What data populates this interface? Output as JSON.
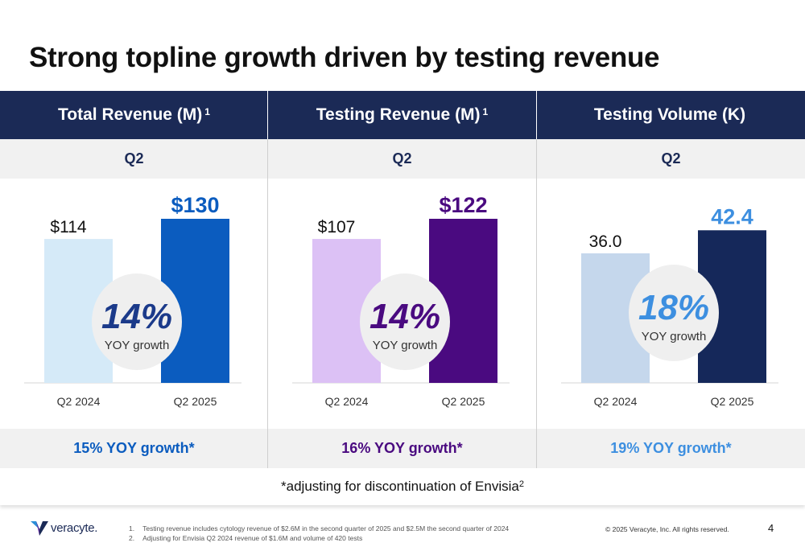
{
  "title": "Strong topline growth driven by testing revenue",
  "panels": [
    {
      "header": "Total Revenue (M)",
      "header_sup": "1",
      "period": "Q2",
      "yoy_adjusted": "15% YOY growth*",
      "growth": {
        "pct": "14%",
        "label": "YOY growth"
      }
    },
    {
      "header": "Testing Revenue (M)",
      "header_sup": "1",
      "period": "Q2",
      "yoy_adjusted": "16% YOY growth*",
      "growth": {
        "pct": "14%",
        "label": "YOY growth"
      }
    },
    {
      "header": "Testing Volume (K)",
      "header_sup": "",
      "period": "Q2",
      "yoy_adjusted": "19% YOY growth*",
      "growth": {
        "pct": "18%",
        "label": "YOY growth"
      }
    }
  ],
  "chart_data": [
    {
      "type": "bar",
      "title": "Total Revenue (M)",
      "categories": [
        "Q2 2024",
        "Q2 2025"
      ],
      "values": [
        114,
        130
      ],
      "labels": [
        "$114",
        "$130"
      ],
      "colors": [
        "#d5eaf8",
        "#0b5cbf"
      ],
      "label_colors": [
        "#111111",
        "#0b5cbf"
      ],
      "pct_color": "#1b3a8a"
    },
    {
      "type": "bar",
      "title": "Testing Revenue (M)",
      "categories": [
        "Q2 2024",
        "Q2 2025"
      ],
      "values": [
        107,
        122
      ],
      "labels": [
        "$107",
        "$122"
      ],
      "colors": [
        "#dcc1f5",
        "#4a0a80"
      ],
      "label_colors": [
        "#111111",
        "#4a0a80"
      ],
      "pct_color": "#4a0a80"
    },
    {
      "type": "bar",
      "title": "Testing Volume (K)",
      "categories": [
        "Q2 2024",
        "Q2 2025"
      ],
      "values": [
        36.0,
        42.4
      ],
      "labels": [
        "36.0",
        "42.4"
      ],
      "colors": [
        "#c5d7ec",
        "#15285a"
      ],
      "label_colors": [
        "#111111",
        "#3d8fe0"
      ],
      "pct_color": "#3d8fe0"
    }
  ],
  "yoy_colors": [
    "#0b5cbf",
    "#4a0a80",
    "#3d8fe0"
  ],
  "footnote": "*adjusting for discontinuation of Envisia",
  "footnote_sup": "2",
  "notes": [
    {
      "num": "1.",
      "text": "Testing revenue includes cytology revenue of $2.6M in the second quarter of 2025 and $2.5M the second quarter of 2024"
    },
    {
      "num": "2.",
      "text": "Adjusting for Envisia Q2 2024 revenue of $1.6M and volume of 420 tests"
    }
  ],
  "logo_text": "veracyte.",
  "copyright": "© 2025 Veracyte, Inc. All rights reserved.",
  "page_number": "4"
}
